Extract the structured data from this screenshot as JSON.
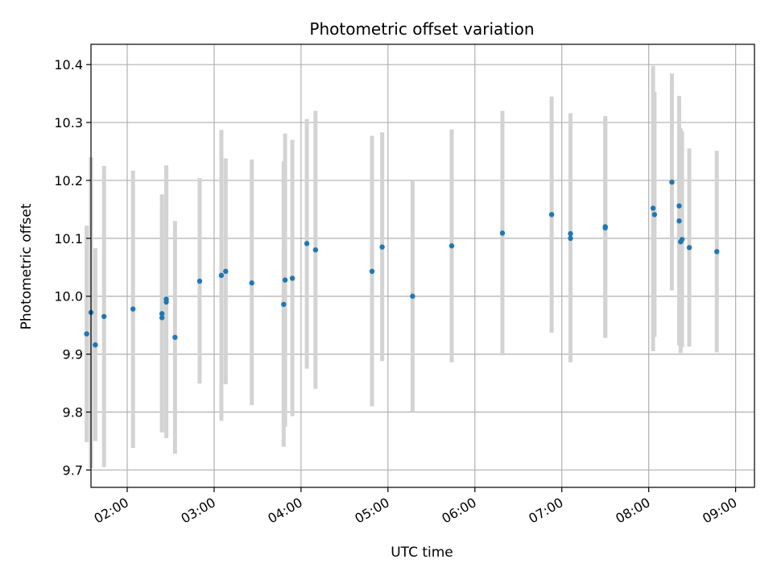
{
  "chart_data": {
    "type": "scatter",
    "title": "Photometric offset variation",
    "xlabel": "UTC time",
    "ylabel": "Photometric offset",
    "x_range": [
      "01:35",
      "09:13"
    ],
    "ylim": [
      9.67,
      10.435
    ],
    "x_ticks": [
      "02:00",
      "03:00",
      "04:00",
      "05:00",
      "06:00",
      "07:00",
      "08:00",
      "09:00"
    ],
    "y_ticks": [
      "9.7",
      "9.8",
      "9.9",
      "10.0",
      "10.1",
      "10.2",
      "10.3",
      "10.4"
    ],
    "grid": true,
    "marker_color": "#1f77b4",
    "errorbar_color": "#d3d3d3",
    "points": [
      {
        "x": "01:32",
        "y": 9.935,
        "ylo": 9.748,
        "yhi": 10.122
      },
      {
        "x": "01:35",
        "y": 9.972,
        "ylo": 9.703,
        "yhi": 10.24
      },
      {
        "x": "01:38",
        "y": 9.916,
        "ylo": 9.75,
        "yhi": 10.083
      },
      {
        "x": "01:44",
        "y": 9.965,
        "ylo": 9.705,
        "yhi": 10.225
      },
      {
        "x": "02:04",
        "y": 9.978,
        "ylo": 9.738,
        "yhi": 10.217
      },
      {
        "x": "02:24",
        "y": 9.963,
        "ylo": 9.767,
        "yhi": 10.16
      },
      {
        "x": "02:24",
        "y": 9.97,
        "ylo": 9.765,
        "yhi": 10.176
      },
      {
        "x": "02:27",
        "y": 9.995,
        "ylo": 9.764,
        "yhi": 10.226
      },
      {
        "x": "02:27",
        "y": 9.99,
        "ylo": 9.755,
        "yhi": 10.22
      },
      {
        "x": "02:33",
        "y": 9.929,
        "ylo": 9.728,
        "yhi": 10.13
      },
      {
        "x": "02:50",
        "y": 10.026,
        "ylo": 9.849,
        "yhi": 10.204
      },
      {
        "x": "03:05",
        "y": 10.036,
        "ylo": 9.785,
        "yhi": 10.287
      },
      {
        "x": "03:08",
        "y": 10.043,
        "ylo": 9.848,
        "yhi": 10.238
      },
      {
        "x": "03:26",
        "y": 10.023,
        "ylo": 9.812,
        "yhi": 10.236
      },
      {
        "x": "03:48",
        "y": 9.986,
        "ylo": 9.74,
        "yhi": 10.233
      },
      {
        "x": "03:49",
        "y": 10.028,
        "ylo": 9.775,
        "yhi": 10.281
      },
      {
        "x": "03:54",
        "y": 10.031,
        "ylo": 9.793,
        "yhi": 10.27
      },
      {
        "x": "04:04",
        "y": 10.091,
        "ylo": 9.875,
        "yhi": 10.306
      },
      {
        "x": "04:10",
        "y": 10.08,
        "ylo": 9.84,
        "yhi": 10.32
      },
      {
        "x": "04:49",
        "y": 10.043,
        "ylo": 9.81,
        "yhi": 10.277
      },
      {
        "x": "04:56",
        "y": 10.085,
        "ylo": 9.888,
        "yhi": 10.283
      },
      {
        "x": "05:17",
        "y": 10.0,
        "ylo": 9.8,
        "yhi": 10.2
      },
      {
        "x": "05:44",
        "y": 10.087,
        "ylo": 9.886,
        "yhi": 10.288
      },
      {
        "x": "06:19",
        "y": 10.109,
        "ylo": 9.898,
        "yhi": 10.32
      },
      {
        "x": "06:53",
        "y": 10.141,
        "ylo": 9.937,
        "yhi": 10.345
      },
      {
        "x": "07:06",
        "y": 10.108,
        "ylo": 9.9,
        "yhi": 10.316
      },
      {
        "x": "07:06",
        "y": 10.1,
        "ylo": 9.886,
        "yhi": 10.315
      },
      {
        "x": "07:30",
        "y": 10.12,
        "ylo": 9.928,
        "yhi": 10.311
      },
      {
        "x": "07:30",
        "y": 10.118,
        "ylo": 9.93,
        "yhi": 10.307
      },
      {
        "x": "08:03",
        "y": 10.152,
        "ylo": 9.905,
        "yhi": 10.398
      },
      {
        "x": "08:04",
        "y": 10.141,
        "ylo": 9.93,
        "yhi": 10.353
      },
      {
        "x": "08:16",
        "y": 10.197,
        "ylo": 10.01,
        "yhi": 10.385
      },
      {
        "x": "08:21",
        "y": 10.156,
        "ylo": 9.985,
        "yhi": 10.33
      },
      {
        "x": "08:21",
        "y": 10.13,
        "ylo": 9.915,
        "yhi": 10.346
      },
      {
        "x": "08:22",
        "y": 10.094,
        "ylo": 9.902,
        "yhi": 10.29
      },
      {
        "x": "08:23",
        "y": 10.098,
        "ylo": 9.912,
        "yhi": 10.285
      },
      {
        "x": "08:28",
        "y": 10.084,
        "ylo": 9.913,
        "yhi": 10.255
      },
      {
        "x": "08:47",
        "y": 10.077,
        "ylo": 9.903,
        "yhi": 10.251
      }
    ]
  }
}
